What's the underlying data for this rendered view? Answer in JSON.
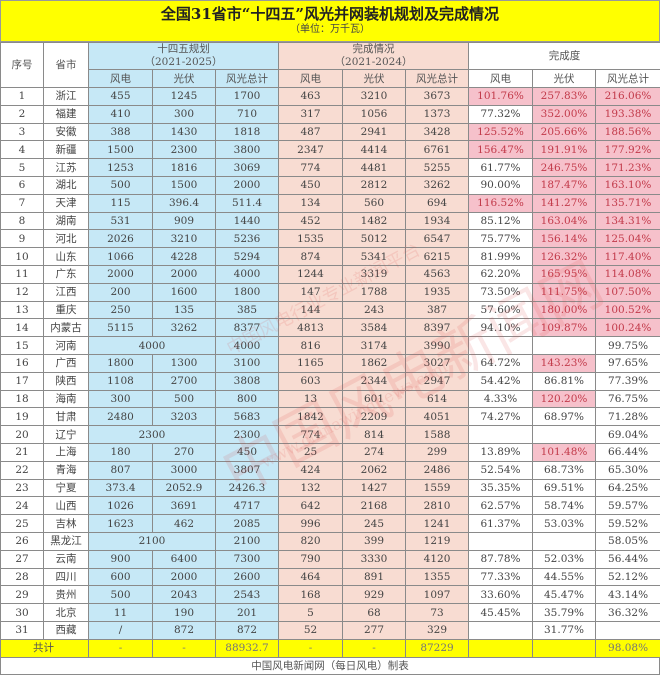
{
  "title": "全国31省市“十四五”风光并网装机规划及完成情况",
  "unit": "（单位：万千瓦）",
  "headers": {
    "no": "序号",
    "province": "省市",
    "plan": "十四五规划",
    "plan_period": "（2021-2025）",
    "done": "完成情况",
    "done_period": "（2021-2024）",
    "rate": "完成度",
    "wind": "风电",
    "solar": "光伏",
    "total": "风光总计"
  },
  "colors": {
    "title_bg": "#ffff00",
    "plan_bg": "#c6e8f6",
    "done_bg": "#f8dcd2",
    "highlight_bg": "#f6c1cb",
    "highlight_text": "#c23a4a"
  },
  "rows": [
    {
      "no": "1",
      "prov": "浙江",
      "pw": "455",
      "ps": "1245",
      "pt": "1700",
      "cw": "463",
      "cs": "3210",
      "ct": "3673",
      "rw": "101.76%",
      "rs": "257.83%",
      "rt": "216.06%"
    },
    {
      "no": "2",
      "prov": "福建",
      "pw": "410",
      "ps": "300",
      "pt": "710",
      "cw": "317",
      "cs": "1056",
      "ct": "1373",
      "rw": "77.32%",
      "rs": "352.00%",
      "rt": "193.38%"
    },
    {
      "no": "3",
      "prov": "安徽",
      "pw": "388",
      "ps": "1430",
      "pt": "1818",
      "cw": "487",
      "cs": "2941",
      "ct": "3428",
      "rw": "125.52%",
      "rs": "205.66%",
      "rt": "188.56%"
    },
    {
      "no": "4",
      "prov": "新疆",
      "pw": "1500",
      "ps": "2300",
      "pt": "3800",
      "cw": "2347",
      "cs": "4414",
      "ct": "6761",
      "rw": "156.47%",
      "rs": "191.91%",
      "rt": "177.92%"
    },
    {
      "no": "5",
      "prov": "江苏",
      "pw": "1253",
      "ps": "1816",
      "pt": "3069",
      "cw": "774",
      "cs": "4481",
      "ct": "5255",
      "rw": "61.77%",
      "rs": "246.75%",
      "rt": "171.23%"
    },
    {
      "no": "6",
      "prov": "湖北",
      "pw": "500",
      "ps": "1500",
      "pt": "2000",
      "cw": "450",
      "cs": "2812",
      "ct": "3262",
      "rw": "90.00%",
      "rs": "187.47%",
      "rt": "163.10%"
    },
    {
      "no": "7",
      "prov": "天津",
      "pw": "115",
      "ps": "396.4",
      "pt": "511.4",
      "cw": "134",
      "cs": "560",
      "ct": "694",
      "rw": "116.52%",
      "rs": "141.27%",
      "rt": "135.71%"
    },
    {
      "no": "8",
      "prov": "湖南",
      "pw": "531",
      "ps": "909",
      "pt": "1440",
      "cw": "452",
      "cs": "1482",
      "ct": "1934",
      "rw": "85.12%",
      "rs": "163.04%",
      "rt": "134.31%"
    },
    {
      "no": "9",
      "prov": "河北",
      "pw": "2026",
      "ps": "3210",
      "pt": "5236",
      "cw": "1535",
      "cs": "5012",
      "ct": "6547",
      "rw": "75.77%",
      "rs": "156.14%",
      "rt": "125.04%"
    },
    {
      "no": "10",
      "prov": "山东",
      "pw": "1066",
      "ps": "4228",
      "pt": "5294",
      "cw": "874",
      "cs": "5341",
      "ct": "6215",
      "rw": "81.99%",
      "rs": "126.32%",
      "rt": "117.40%"
    },
    {
      "no": "11",
      "prov": "广东",
      "pw": "2000",
      "ps": "2000",
      "pt": "4000",
      "cw": "1244",
      "cs": "3319",
      "ct": "4563",
      "rw": "62.20%",
      "rs": "165.95%",
      "rt": "114.08%"
    },
    {
      "no": "12",
      "prov": "江西",
      "pw": "200",
      "ps": "1600",
      "pt": "1800",
      "cw": "147",
      "cs": "1788",
      "ct": "1935",
      "rw": "73.50%",
      "rs": "111.75%",
      "rt": "107.50%"
    },
    {
      "no": "13",
      "prov": "重庆",
      "pw": "250",
      "ps": "135",
      "pt": "385",
      "cw": "144",
      "cs": "243",
      "ct": "387",
      "rw": "57.60%",
      "rs": "180.00%",
      "rt": "100.52%"
    },
    {
      "no": "14",
      "prov": "内蒙古",
      "pw": "5115",
      "ps": "3262",
      "pt": "8377",
      "cw": "4813",
      "cs": "3584",
      "ct": "8397",
      "rw": "94.10%",
      "rs": "109.87%",
      "rt": "100.24%"
    },
    {
      "no": "15",
      "prov": "河南",
      "pm": "4000",
      "pt": "4000",
      "cw": "816",
      "cs": "3174",
      "ct": "3990",
      "rw": "",
      "rs": "",
      "rt": "99.75%"
    },
    {
      "no": "16",
      "prov": "广西",
      "pw": "1800",
      "ps": "1300",
      "pt": "3100",
      "cw": "1165",
      "cs": "1862",
      "ct": "3027",
      "rw": "64.72%",
      "rs": "143.23%",
      "rt": "97.65%"
    },
    {
      "no": "17",
      "prov": "陕西",
      "pw": "1108",
      "ps": "2700",
      "pt": "3808",
      "cw": "603",
      "cs": "2344",
      "ct": "2947",
      "rw": "54.42%",
      "rs": "86.81%",
      "rt": "77.39%"
    },
    {
      "no": "18",
      "prov": "海南",
      "pw": "300",
      "ps": "500",
      "pt": "800",
      "cw": "13",
      "cs": "601",
      "ct": "614",
      "rw": "4.33%",
      "rs": "120.20%",
      "rt": "76.75%"
    },
    {
      "no": "19",
      "prov": "甘肃",
      "pw": "2480",
      "ps": "3203",
      "pt": "5683",
      "cw": "1842",
      "cs": "2209",
      "ct": "4051",
      "rw": "74.27%",
      "rs": "68.97%",
      "rt": "71.28%"
    },
    {
      "no": "20",
      "prov": "辽宁",
      "pm": "2300",
      "pt": "2300",
      "cw": "774",
      "cs": "814",
      "ct": "1588",
      "rw": "",
      "rs": "",
      "rt": "69.04%"
    },
    {
      "no": "21",
      "prov": "上海",
      "pw": "180",
      "ps": "270",
      "pt": "450",
      "cw": "25",
      "cs": "274",
      "ct": "299",
      "rw": "13.89%",
      "rs": "101.48%",
      "rt": "66.44%"
    },
    {
      "no": "22",
      "prov": "青海",
      "pw": "807",
      "ps": "3000",
      "pt": "3807",
      "cw": "424",
      "cs": "2062",
      "ct": "2486",
      "rw": "52.54%",
      "rs": "68.73%",
      "rt": "65.30%"
    },
    {
      "no": "23",
      "prov": "宁夏",
      "pw": "373.4",
      "ps": "2052.9",
      "pt": "2426.3",
      "cw": "132",
      "cs": "1427",
      "ct": "1559",
      "rw": "35.35%",
      "rs": "69.51%",
      "rt": "64.25%"
    },
    {
      "no": "24",
      "prov": "山西",
      "pw": "1026",
      "ps": "3691",
      "pt": "4717",
      "cw": "642",
      "cs": "2168",
      "ct": "2810",
      "rw": "62.57%",
      "rs": "58.74%",
      "rt": "59.57%"
    },
    {
      "no": "25",
      "prov": "吉林",
      "pw": "1623",
      "ps": "462",
      "pt": "2085",
      "cw": "996",
      "cs": "245",
      "ct": "1241",
      "rw": "61.37%",
      "rs": "53.03%",
      "rt": "59.52%"
    },
    {
      "no": "26",
      "prov": "黑龙江",
      "pm": "2100",
      "pt": "2100",
      "cw": "820",
      "cs": "399",
      "ct": "1219",
      "rw": "",
      "rs": "",
      "rt": "58.05%"
    },
    {
      "no": "27",
      "prov": "云南",
      "pw": "900",
      "ps": "6400",
      "pt": "7300",
      "cw": "790",
      "cs": "3330",
      "ct": "4120",
      "rw": "87.78%",
      "rs": "52.03%",
      "rt": "56.44%"
    },
    {
      "no": "28",
      "prov": "四川",
      "pw": "600",
      "ps": "2000",
      "pt": "2600",
      "cw": "464",
      "cs": "891",
      "ct": "1355",
      "rw": "77.33%",
      "rs": "44.55%",
      "rt": "52.12%"
    },
    {
      "no": "29",
      "prov": "贵州",
      "pw": "500",
      "ps": "2043",
      "pt": "2543",
      "cw": "168",
      "cs": "929",
      "ct": "1097",
      "rw": "33.60%",
      "rs": "45.47%",
      "rt": "43.14%"
    },
    {
      "no": "30",
      "prov": "北京",
      "pw": "11",
      "ps": "190",
      "pt": "201",
      "cw": "5",
      "cs": "68",
      "ct": "73",
      "rw": "45.45%",
      "rs": "35.79%",
      "rt": "36.32%"
    },
    {
      "no": "31",
      "prov": "西藏",
      "pw": "/",
      "ps": "872",
      "pt": "872",
      "cw": "52",
      "cs": "277",
      "ct": "329",
      "rw": "",
      "rs": "31.77%",
      "rt": ""
    }
  ],
  "total": {
    "label": "共计",
    "pw": "-",
    "ps": "-",
    "pt": "88932.7",
    "cw": "-",
    "cs": "-",
    "ct": "87229",
    "rw": "",
    "rs": "",
    "rt": "98.08%"
  },
  "footer": "中国风电新闻网（每日风电）制表",
  "watermark": {
    "big": "中国风电新闻网",
    "small": "中国风电行业专业新闻平台",
    "url": "www.chinawindnews.com"
  }
}
